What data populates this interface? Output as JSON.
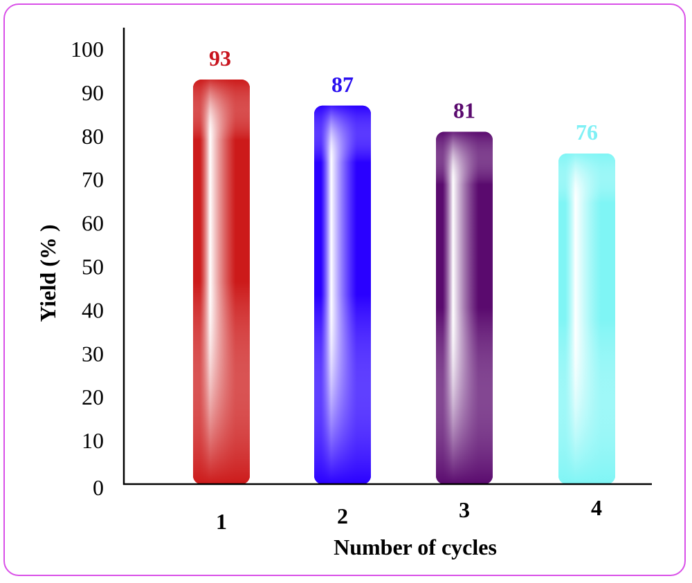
{
  "chart_data": {
    "type": "bar",
    "title": "",
    "xlabel": "Number of cycles",
    "ylabel": "Yield (% )",
    "categories": [
      "1",
      "2",
      "3",
      "4"
    ],
    "values": [
      93,
      87,
      81,
      76
    ],
    "data_labels": [
      "93",
      "87",
      "81",
      "76"
    ],
    "colors": [
      "#cc1a1a",
      "#2a00ff",
      "#5a0a6e",
      "#7ff5f5"
    ],
    "label_colors": [
      "#c8141e",
      "#2a10f0",
      "#5a0a6e",
      "#7ff0f5"
    ],
    "ylim": [
      0,
      100
    ],
    "yticks": [
      "0",
      "10",
      "20",
      "30",
      "40",
      "50",
      "60",
      "70",
      "80",
      "90",
      "100"
    ],
    "grid": false,
    "legend": "none",
    "frame_color": "#d94fe8"
  }
}
